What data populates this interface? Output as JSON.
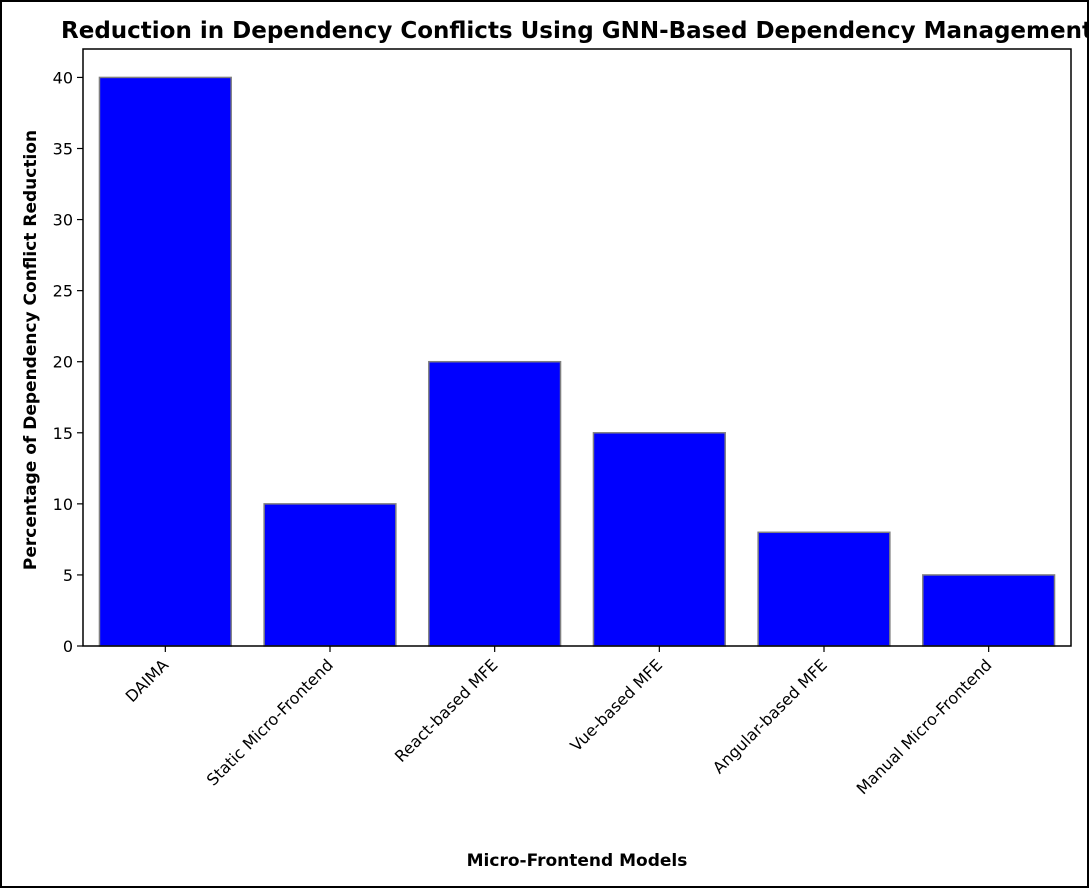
{
  "chart_data": {
    "type": "bar",
    "title": "Reduction in Dependency Conflicts Using GNN-Based Dependency Management",
    "xlabel": "Micro-Frontend Models",
    "ylabel": "Percentage of Dependency Conflict Reduction",
    "categories": [
      "DAIMA",
      "Static Micro-Frontend",
      "React-based MFE",
      "Vue-based MFE",
      "Angular-based MFE",
      "Manual Micro-Frontend"
    ],
    "values": [
      40,
      10,
      20,
      15,
      8,
      5
    ],
    "ylim": [
      0,
      42
    ],
    "yticks": [
      0,
      5,
      10,
      15,
      20,
      25,
      30,
      35,
      40
    ],
    "grid": false,
    "legend": "none",
    "colors": {
      "bar_fill": "#0000ff",
      "bar_edge": "#808080",
      "axis": "#000000"
    }
  }
}
